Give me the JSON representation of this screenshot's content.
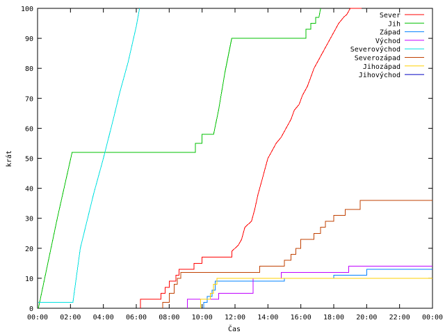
{
  "chart_data": {
    "type": "line",
    "title": "",
    "xlabel": "Čas",
    "ylabel": "krát",
    "xlim": [
      0,
      24
    ],
    "ylim": [
      0,
      100
    ],
    "grid": false,
    "legend_position": "top-right",
    "x_ticks": [
      {
        "value": 0,
        "label": "00:00"
      },
      {
        "value": 2,
        "label": "02:00"
      },
      {
        "value": 4,
        "label": "04:00"
      },
      {
        "value": 6,
        "label": "06:00"
      },
      {
        "value": 8,
        "label": "08:00"
      },
      {
        "value": 10,
        "label": "10:00"
      },
      {
        "value": 12,
        "label": "12:00"
      },
      {
        "value": 14,
        "label": "14:00"
      },
      {
        "value": 16,
        "label": "16:00"
      },
      {
        "value": 18,
        "label": "18:00"
      },
      {
        "value": 20,
        "label": "20:00"
      },
      {
        "value": 22,
        "label": "22:00"
      },
      {
        "value": 24,
        "label": "00:00"
      }
    ],
    "y_ticks": [
      {
        "value": 0,
        "label": "0"
      },
      {
        "value": 10,
        "label": "10"
      },
      {
        "value": 20,
        "label": "20"
      },
      {
        "value": 30,
        "label": "30"
      },
      {
        "value": 40,
        "label": "40"
      },
      {
        "value": 50,
        "label": "50"
      },
      {
        "value": 60,
        "label": "60"
      },
      {
        "value": 70,
        "label": "70"
      },
      {
        "value": 80,
        "label": "80"
      },
      {
        "value": 90,
        "label": "90"
      },
      {
        "value": 100,
        "label": "100"
      }
    ],
    "series": [
      {
        "name": "Sever",
        "color": "#ff0000",
        "points": [
          [
            6.25,
            0
          ],
          [
            6.25,
            3
          ],
          [
            7.5,
            3
          ],
          [
            7.5,
            5
          ],
          [
            7.75,
            5
          ],
          [
            7.75,
            7
          ],
          [
            8.0,
            7
          ],
          [
            8.0,
            9
          ],
          [
            8.4,
            9
          ],
          [
            8.4,
            11
          ],
          [
            8.6,
            11
          ],
          [
            8.6,
            13
          ],
          [
            9.5,
            13
          ],
          [
            9.5,
            15
          ],
          [
            10.0,
            15
          ],
          [
            10.0,
            17
          ],
          [
            11.8,
            17
          ],
          [
            11.8,
            19
          ],
          [
            12.2,
            21
          ],
          [
            12.4,
            23
          ],
          [
            12.6,
            27
          ],
          [
            13.0,
            29
          ],
          [
            13.2,
            33
          ],
          [
            13.4,
            38
          ],
          [
            13.6,
            42
          ],
          [
            13.8,
            46
          ],
          [
            14.0,
            50
          ],
          [
            14.2,
            52
          ],
          [
            14.5,
            55
          ],
          [
            14.8,
            57
          ],
          [
            15.1,
            60
          ],
          [
            15.4,
            63
          ],
          [
            15.6,
            66
          ],
          [
            15.9,
            68
          ],
          [
            16.1,
            71
          ],
          [
            16.4,
            74
          ],
          [
            16.6,
            77
          ],
          [
            16.8,
            80
          ],
          [
            17.1,
            83
          ],
          [
            17.4,
            86
          ],
          [
            17.7,
            89
          ],
          [
            18.0,
            92
          ],
          [
            18.3,
            95
          ],
          [
            18.6,
            97
          ],
          [
            18.8,
            98
          ],
          [
            19.0,
            100
          ],
          [
            19.7,
            100
          ]
        ]
      },
      {
        "name": "Jih",
        "color": "#00c000",
        "points": [
          [
            0.05,
            0
          ],
          [
            1.2,
            30
          ],
          [
            2.1,
            52
          ],
          [
            9.6,
            52
          ],
          [
            9.6,
            55
          ],
          [
            10.0,
            55
          ],
          [
            10.0,
            58
          ],
          [
            10.7,
            58
          ],
          [
            11.0,
            66
          ],
          [
            11.4,
            79
          ],
          [
            11.8,
            90
          ],
          [
            16.3,
            90
          ],
          [
            16.3,
            93
          ],
          [
            16.6,
            93
          ],
          [
            16.6,
            95
          ],
          [
            16.9,
            95
          ],
          [
            16.9,
            97
          ],
          [
            17.1,
            97
          ],
          [
            17.2,
            100
          ]
        ]
      },
      {
        "name": "Západ",
        "color": "#0080ff",
        "points": [
          [
            10.1,
            0
          ],
          [
            10.1,
            2
          ],
          [
            10.3,
            2
          ],
          [
            10.3,
            4
          ],
          [
            10.6,
            4
          ],
          [
            10.6,
            6
          ],
          [
            10.8,
            6
          ],
          [
            10.8,
            9
          ],
          [
            15.0,
            9
          ],
          [
            15.0,
            10
          ],
          [
            18.0,
            10
          ],
          [
            18.0,
            11
          ],
          [
            20.0,
            11
          ],
          [
            20.0,
            13
          ],
          [
            24.0,
            13
          ]
        ]
      },
      {
        "name": "Východ",
        "color": "#c000ff",
        "points": [
          [
            9.1,
            0
          ],
          [
            9.1,
            3
          ],
          [
            11.0,
            3
          ],
          [
            11.0,
            5
          ],
          [
            13.1,
            5
          ],
          [
            13.1,
            10
          ],
          [
            14.8,
            10
          ],
          [
            14.8,
            12
          ],
          [
            18.9,
            12
          ],
          [
            18.9,
            14
          ],
          [
            24.0,
            14
          ]
        ]
      },
      {
        "name": "Severovýchod",
        "color": "#00e0e0",
        "points": [
          [
            0.05,
            2
          ],
          [
            2.15,
            2
          ],
          [
            2.6,
            20
          ],
          [
            3.4,
            38
          ],
          [
            4.0,
            50
          ],
          [
            4.6,
            63
          ],
          [
            5.0,
            72
          ],
          [
            5.5,
            82
          ],
          [
            6.0,
            94
          ],
          [
            6.2,
            100
          ]
        ]
      },
      {
        "name": "Severozápad",
        "color": "#c04000",
        "points": [
          [
            7.6,
            0
          ],
          [
            7.6,
            2
          ],
          [
            8.0,
            2
          ],
          [
            8.0,
            5
          ],
          [
            8.3,
            5
          ],
          [
            8.3,
            8
          ],
          [
            8.5,
            8
          ],
          [
            8.5,
            10
          ],
          [
            8.7,
            10
          ],
          [
            8.7,
            12
          ],
          [
            13.5,
            12
          ],
          [
            13.5,
            14
          ],
          [
            15.0,
            14
          ],
          [
            15.0,
            16
          ],
          [
            15.4,
            16
          ],
          [
            15.4,
            18
          ],
          [
            15.7,
            18
          ],
          [
            15.7,
            20
          ],
          [
            16.0,
            20
          ],
          [
            16.0,
            23
          ],
          [
            16.8,
            23
          ],
          [
            16.8,
            25
          ],
          [
            17.2,
            25
          ],
          [
            17.2,
            27
          ],
          [
            17.5,
            27
          ],
          [
            17.5,
            29
          ],
          [
            18.0,
            29
          ],
          [
            18.0,
            31
          ],
          [
            18.7,
            31
          ],
          [
            18.7,
            33
          ],
          [
            19.6,
            33
          ],
          [
            19.6,
            36
          ],
          [
            24.0,
            36
          ]
        ]
      },
      {
        "name": "Jihozápad",
        "color": "#ffd000",
        "points": [
          [
            9.9,
            0
          ],
          [
            9.9,
            3
          ],
          [
            10.5,
            3
          ],
          [
            10.5,
            5
          ],
          [
            10.7,
            5
          ],
          [
            10.7,
            8
          ],
          [
            10.9,
            8
          ],
          [
            10.9,
            10
          ],
          [
            24.0,
            10
          ]
        ]
      },
      {
        "name": "Jihovýchod",
        "color": "#0000c0",
        "points": []
      }
    ]
  }
}
